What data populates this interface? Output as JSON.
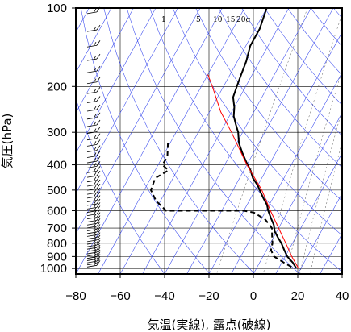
{
  "chart_data": {
    "type": "line",
    "title": "",
    "xlabel": "気温(実線), 露点(破線)",
    "ylabel": "気圧(hPa)",
    "xlim": [
      -80,
      40
    ],
    "ylim_hpa": [
      1050,
      100
    ],
    "y_scale": "log",
    "grid": true,
    "x_ticks": [
      -80,
      -60,
      -40,
      -20,
      0,
      20,
      40
    ],
    "x_tick_labels": [
      "−80",
      "−60",
      "−40",
      "−20",
      "0",
      "20",
      "40"
    ],
    "y_ticks": [
      100,
      200,
      300,
      400,
      500,
      600,
      700,
      800,
      900,
      1000
    ],
    "y_tick_labels": [
      "100",
      "200",
      "300",
      "400",
      "500",
      "600",
      "700",
      "800",
      "900",
      "1000"
    ],
    "mixing_ratio_labels": [
      "1",
      "5",
      "10",
      "15",
      "20g"
    ],
    "series": [
      {
        "role": "temperature",
        "style": "solid",
        "color": "#000000",
        "points": [
          [
            100,
            -60
          ],
          [
            120,
            -58
          ],
          [
            140,
            -58
          ],
          [
            160,
            -56
          ],
          [
            180,
            -55
          ],
          [
            200,
            -54
          ],
          [
            220,
            -53
          ],
          [
            240,
            -50
          ],
          [
            260,
            -48
          ],
          [
            280,
            -45
          ],
          [
            300,
            -42
          ],
          [
            330,
            -39
          ],
          [
            360,
            -35
          ],
          [
            390,
            -31
          ],
          [
            420,
            -27
          ],
          [
            450,
            -24
          ],
          [
            480,
            -20
          ],
          [
            510,
            -17
          ],
          [
            540,
            -14
          ],
          [
            570,
            -11
          ],
          [
            600,
            -9
          ],
          [
            640,
            -6
          ],
          [
            680,
            -3
          ],
          [
            720,
            -1
          ],
          [
            760,
            2
          ],
          [
            800,
            5
          ],
          [
            850,
            8
          ],
          [
            900,
            11
          ],
          [
            950,
            15
          ],
          [
            1000,
            18
          ]
        ]
      },
      {
        "role": "dewpoint",
        "style": "dashed",
        "color": "#000000",
        "points": [
          [
            330,
            -71
          ],
          [
            370,
            -68
          ],
          [
            400,
            -68
          ],
          [
            420,
            -64
          ],
          [
            450,
            -68
          ],
          [
            500,
            -67
          ],
          [
            550,
            -62
          ],
          [
            600,
            -55
          ],
          [
            600,
            -30
          ],
          [
            600,
            -20
          ],
          [
            610,
            -15
          ],
          [
            650,
            -8
          ],
          [
            700,
            -3
          ],
          [
            750,
            -1
          ],
          [
            800,
            1
          ],
          [
            850,
            2
          ],
          [
            900,
            5
          ],
          [
            950,
            11
          ],
          [
            1000,
            17
          ]
        ]
      },
      {
        "role": "parcel",
        "style": "solid",
        "color": "#ff0000",
        "points": [
          [
            1000,
            19
          ],
          [
            900,
            13
          ],
          [
            800,
            7
          ],
          [
            700,
            0
          ],
          [
            600,
            -8
          ],
          [
            500,
            -17
          ],
          [
            400,
            -30
          ],
          [
            300,
            -45
          ],
          [
            250,
            -55
          ],
          [
            200,
            -65
          ],
          [
            180,
            -70
          ]
        ]
      }
    ]
  }
}
